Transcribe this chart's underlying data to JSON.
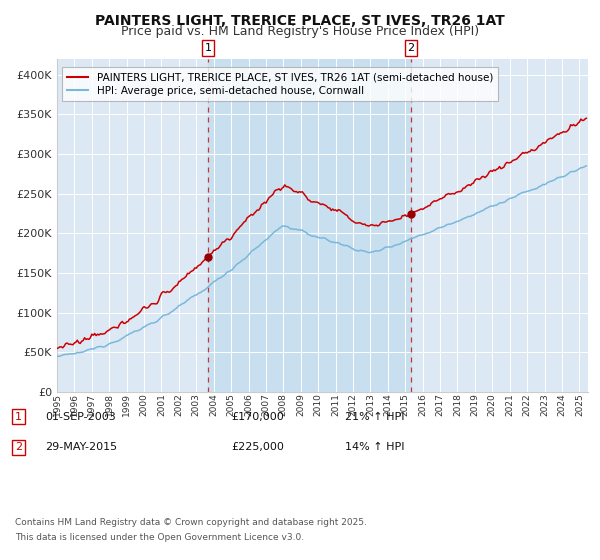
{
  "title": "PAINTERS LIGHT, TRERICE PLACE, ST IVES, TR26 1AT",
  "subtitle": "Price paid vs. HM Land Registry's House Price Index (HPI)",
  "ylim": [
    0,
    420000
  ],
  "xlim_start": "1995-01-01",
  "xlim_end": "2025-07-01",
  "yticks": [
    0,
    50000,
    100000,
    150000,
    200000,
    250000,
    300000,
    350000,
    400000
  ],
  "ytick_labels": [
    "£0",
    "£50K",
    "£100K",
    "£150K",
    "£200K",
    "£250K",
    "£300K",
    "£350K",
    "£400K"
  ],
  "xtick_years": [
    "1995",
    "1996",
    "1997",
    "1998",
    "1999",
    "2000",
    "2001",
    "2002",
    "2003",
    "2004",
    "2005",
    "2006",
    "2007",
    "2008",
    "2009",
    "2010",
    "2011",
    "2012",
    "2013",
    "2014",
    "2015",
    "2016",
    "2017",
    "2018",
    "2019",
    "2020",
    "2021",
    "2022",
    "2023",
    "2024",
    "2025"
  ],
  "sale1_date": "2003-09-01",
  "sale1_price": 170000,
  "sale1_label": "1",
  "sale1_text": "01-SEP-2003",
  "sale1_pct": "21% ↑ HPI",
  "sale2_date": "2015-05-01",
  "sale2_price": 225000,
  "sale2_label": "2",
  "sale2_text": "29-MAY-2015",
  "sale2_pct": "14% ↑ HPI",
  "hpi_color": "#7ab8d9",
  "property_color": "#cc0000",
  "bg_color": "#dce9f5",
  "span_color": "#c8dff0",
  "legend1": "PAINTERS LIGHT, TRERICE PLACE, ST IVES, TR26 1AT (semi-detached house)",
  "legend2": "HPI: Average price, semi-detached house, Cornwall",
  "footnote_line1": "Contains HM Land Registry data © Crown copyright and database right 2025.",
  "footnote_line2": "This data is licensed under the Open Government Licence v3.0.",
  "title_fontsize": 10,
  "subtitle_fontsize": 9,
  "axis_fontsize": 8,
  "legend_fontsize": 7.5,
  "table_fontsize": 8
}
